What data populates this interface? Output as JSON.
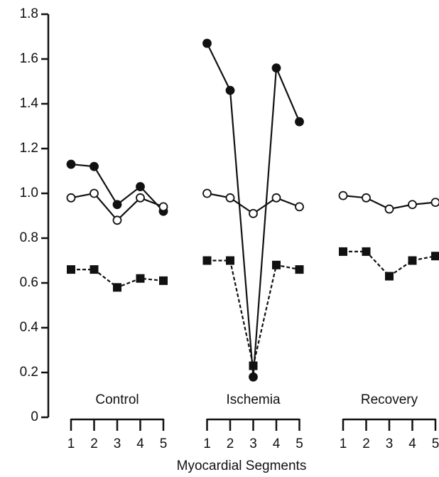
{
  "chart_data": {
    "type": "line",
    "x_label": "Myocardial Segments",
    "groups": [
      {
        "name": "Control",
        "categories": [
          "1",
          "2",
          "3",
          "4",
          "5"
        ]
      },
      {
        "name": "Ischemia",
        "categories": [
          "1",
          "2",
          "3",
          "4",
          "5"
        ]
      },
      {
        "name": "Recovery",
        "categories": [
          "1",
          "2",
          "3",
          "4",
          "5"
        ]
      }
    ],
    "series": [
      {
        "marker": "filled-circle",
        "dash": false,
        "color": "#111111",
        "values": [
          1.13,
          1.12,
          0.95,
          1.03,
          0.92,
          1.67,
          1.46,
          0.18,
          1.56,
          1.32,
          null,
          null,
          null,
          null,
          null
        ]
      },
      {
        "marker": "open-circle",
        "dash": false,
        "color": "#111111",
        "values": [
          0.98,
          1.0,
          0.88,
          0.98,
          0.94,
          1.0,
          0.98,
          0.91,
          0.98,
          0.94,
          0.99,
          0.98,
          0.93,
          0.95,
          0.96
        ]
      },
      {
        "marker": "filled-square",
        "dash": true,
        "color": "#111111",
        "values": [
          0.66,
          0.66,
          0.58,
          0.62,
          0.61,
          0.7,
          0.7,
          0.23,
          0.68,
          0.66,
          0.74,
          0.74,
          0.63,
          0.7,
          0.72
        ]
      }
    ],
    "ylim": [
      0,
      1.8
    ],
    "yticks": [
      0,
      0.2,
      0.4,
      0.6,
      0.8,
      {
        "value": 1,
        "label": "1.0"
      },
      1.2,
      1.4,
      1.6,
      1.8
    ],
    "grid": false
  }
}
